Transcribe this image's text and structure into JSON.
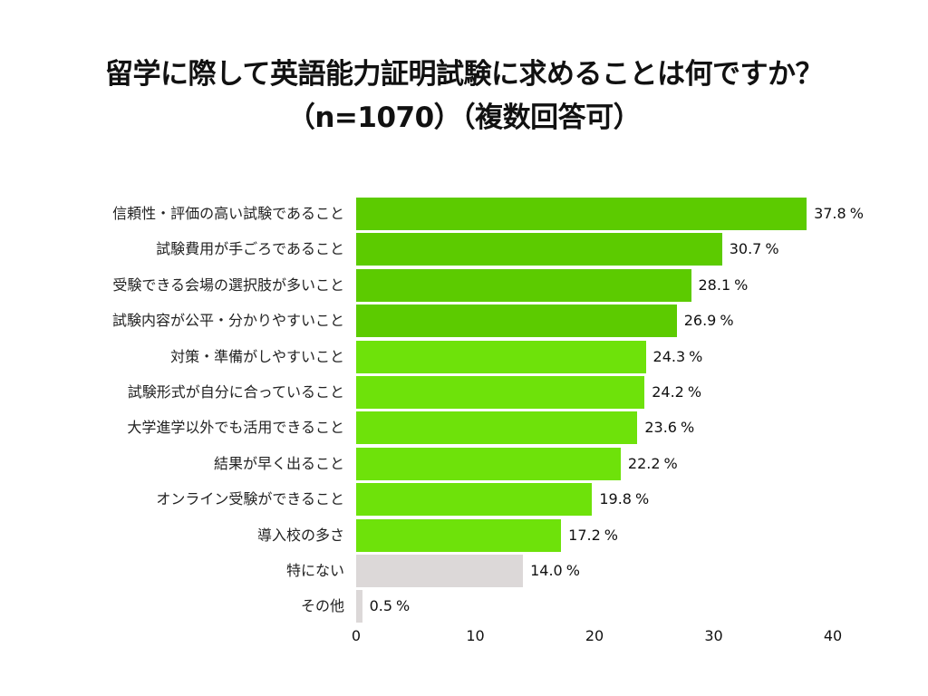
{
  "title": {
    "line1": "留学に際して英語能力証明試験に求めることは何ですか？",
    "line2": "（n=1070）（複数回答可）"
  },
  "colors": {
    "top_green": "#5ccb00",
    "light_green": "#6ee20a",
    "gray": "#dcd8d8"
  },
  "chart_data": {
    "type": "bar",
    "orientation": "horizontal",
    "title": "留学に際して英語能力証明試験に求めることは何ですか？（n=1070）（複数回答可）",
    "xlabel": "",
    "ylabel": "",
    "unit": "%",
    "xlim": [
      0,
      40
    ],
    "xticks": [
      "0",
      "10",
      "20",
      "30",
      "40"
    ],
    "grid": false,
    "legend": "none",
    "categories": [
      "信頼性・評価の高い試験であること",
      "試験費用が手ごろであること",
      "受験できる会場の選択肢が多いこと",
      "試験内容が公平・分かりやすいこと",
      "対策・準備がしやすいこと",
      "試験形式が自分に合っていること",
      "大学進学以外でも活用できること",
      "結果が早く出ること",
      "オンライン受験ができること",
      "導入校の多さ",
      "特にない",
      "その他"
    ],
    "values": [
      37.8,
      30.7,
      28.1,
      26.9,
      24.3,
      24.2,
      23.6,
      22.2,
      19.8,
      17.2,
      14.0,
      0.5
    ],
    "value_labels": [
      "37.8",
      "30.7",
      "28.1",
      "26.9",
      "24.3",
      "24.2",
      "23.6",
      "22.2",
      "19.8",
      "17.2",
      "14.0",
      "0.5"
    ],
    "bar_colors": [
      "#5ccb00",
      "#5ccb00",
      "#5ccb00",
      "#5ccb00",
      "#6ee20a",
      "#6ee20a",
      "#6ee20a",
      "#6ee20a",
      "#6ee20a",
      "#6ee20a",
      "#dcd8d8",
      "#dcd8d8"
    ]
  },
  "pct_symbol": "%"
}
